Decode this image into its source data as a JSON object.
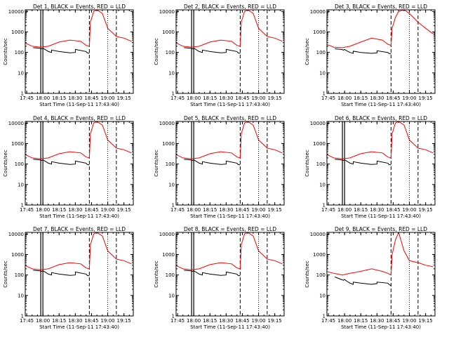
{
  "figure": {
    "x_axis_title": "Start Time (11-Sep-11 17:43:40)",
    "y_axis_title": "Counts/sec",
    "x_tick_labels": [
      "17:45",
      "18:00",
      "18:15",
      "18:30",
      "18:45",
      "19:00",
      "19:15"
    ],
    "y_tick_labels": [
      "1",
      "10",
      "100",
      "1000",
      "10000"
    ],
    "colors": {
      "events": "#000000",
      "lld": "#ff0000",
      "background": "#ffffff"
    }
  },
  "chart_data": [
    {
      "type": "line",
      "title": "Det 1, BLACK = Events, RED = LLD",
      "xlim": [
        "17:43:40",
        "19:23:40"
      ],
      "ylim": [
        1,
        12000
      ],
      "y_scale": "log",
      "markers": {
        "solid": [
          "17:58",
          "18:00"
        ],
        "dashed": [
          "18:43",
          "19:08"
        ],
        "dotted": [
          "19:00"
        ]
      },
      "series": [
        {
          "color": "black",
          "x": [
            "17:51",
            "17:57",
            "17:59",
            "18:00",
            "18:02",
            "18:05",
            "18:08",
            "18:08",
            "18:15",
            "18:25",
            "18:30",
            "18:30",
            "18:40",
            "18:41",
            "18:43"
          ],
          "y": [
            170,
            160,
            150,
            160,
            140,
            110,
            100,
            130,
            110,
            95,
            100,
            140,
            110,
            95,
            90
          ]
        },
        {
          "color": "red",
          "x": [
            "17:43",
            "17:50",
            "17:58",
            "18:05",
            "18:15",
            "18:25",
            "18:35",
            "18:40",
            "18:43",
            "18:44",
            "18:47",
            "18:50",
            "18:55",
            "19:00",
            "19:08",
            "19:15",
            "19:22"
          ],
          "y": [
            300,
            200,
            180,
            200,
            320,
            400,
            350,
            220,
            200,
            3000,
            10000,
            12000,
            8000,
            1500,
            600,
            500,
            350
          ]
        }
      ]
    },
    {
      "type": "line",
      "title": "Det 2, BLACK = Events, RED = LLD",
      "xlim": [
        "17:43:40",
        "19:23:40"
      ],
      "ylim": [
        1,
        12000
      ],
      "y_scale": "log",
      "markers": {
        "solid": [
          "17:58",
          "18:00"
        ],
        "dashed": [
          "18:43",
          "19:08"
        ],
        "dotted": [
          "19:00"
        ]
      },
      "series": [
        {
          "color": "black",
          "x": [
            "17:51",
            "17:57",
            "17:59",
            "18:00",
            "18:02",
            "18:05",
            "18:08",
            "18:08",
            "18:15",
            "18:25",
            "18:30",
            "18:30",
            "18:40",
            "18:41",
            "18:43"
          ],
          "y": [
            170,
            160,
            150,
            160,
            140,
            110,
            100,
            130,
            110,
            95,
            100,
            140,
            110,
            95,
            90
          ]
        },
        {
          "color": "red",
          "x": [
            "17:43",
            "17:50",
            "17:58",
            "18:05",
            "18:15",
            "18:25",
            "18:35",
            "18:40",
            "18:43",
            "18:44",
            "18:47",
            "18:50",
            "18:55",
            "19:00",
            "19:08",
            "19:15",
            "19:22"
          ],
          "y": [
            300,
            200,
            180,
            200,
            320,
            400,
            350,
            220,
            200,
            3000,
            10000,
            12000,
            8000,
            1500,
            600,
            500,
            350
          ]
        }
      ]
    },
    {
      "type": "line",
      "title": "Det 3, BLACK = Events, RED = LLD",
      "xlim": [
        "17:43:40",
        "19:23:40"
      ],
      "ylim": [
        1,
        12000
      ],
      "y_scale": "log",
      "markers": {
        "solid": [],
        "dashed": [
          "18:43",
          "19:08"
        ],
        "dotted": [
          "19:00"
        ]
      },
      "series": [
        {
          "color": "black",
          "x": [
            "17:51",
            "17:57",
            "17:59",
            "18:00",
            "18:02",
            "18:05",
            "18:08",
            "18:08",
            "18:15",
            "18:25",
            "18:30",
            "18:30",
            "18:40",
            "18:41",
            "18:43"
          ],
          "y": [
            150,
            140,
            130,
            140,
            120,
            100,
            90,
            115,
            100,
            90,
            95,
            120,
            100,
            90,
            85
          ]
        },
        {
          "color": "red",
          "x": [
            "17:43",
            "17:50",
            "17:58",
            "18:05",
            "18:15",
            "18:25",
            "18:35",
            "18:40",
            "18:43",
            "18:44",
            "18:47",
            "18:50",
            "18:55",
            "19:00",
            "19:08",
            "19:15",
            "19:22"
          ],
          "y": [
            250,
            180,
            170,
            200,
            320,
            500,
            400,
            250,
            220,
            1500,
            5000,
            10000,
            12000,
            8000,
            3000,
            1500,
            800
          ]
        }
      ]
    },
    {
      "type": "line",
      "title": "Det 4, BLACK = Events, RED = LLD",
      "xlim": [
        "17:43:40",
        "19:23:40"
      ],
      "ylim": [
        1,
        12000
      ],
      "y_scale": "log",
      "markers": {
        "solid": [
          "17:58",
          "18:00"
        ],
        "dashed": [
          "18:43",
          "19:08"
        ],
        "dotted": [
          "19:00"
        ]
      },
      "series": [
        {
          "color": "black",
          "x": [
            "17:51",
            "17:57",
            "17:59",
            "18:00",
            "18:02",
            "18:05",
            "18:08",
            "18:08",
            "18:15",
            "18:25",
            "18:30",
            "18:30",
            "18:40",
            "18:41",
            "18:43"
          ],
          "y": [
            170,
            160,
            150,
            160,
            140,
            110,
            100,
            130,
            110,
            95,
            100,
            140,
            110,
            95,
            90
          ]
        },
        {
          "color": "red",
          "x": [
            "17:43",
            "17:50",
            "17:58",
            "18:05",
            "18:15",
            "18:25",
            "18:35",
            "18:40",
            "18:43",
            "18:44",
            "18:47",
            "18:50",
            "18:55",
            "19:00",
            "19:08",
            "19:15",
            "19:22"
          ],
          "y": [
            300,
            200,
            180,
            200,
            320,
            400,
            350,
            220,
            200,
            3000,
            10000,
            12000,
            8000,
            1500,
            600,
            500,
            350
          ]
        }
      ]
    },
    {
      "type": "line",
      "title": "Det 5, BLACK = Events, RED = LLD",
      "xlim": [
        "17:43:40",
        "19:23:40"
      ],
      "ylim": [
        1,
        12000
      ],
      "y_scale": "log",
      "markers": {
        "solid": [
          "17:58",
          "18:00"
        ],
        "dashed": [
          "18:43",
          "19:08"
        ],
        "dotted": [
          "19:00"
        ]
      },
      "series": [
        {
          "color": "black",
          "x": [
            "17:51",
            "17:57",
            "17:59",
            "18:00",
            "18:02",
            "18:05",
            "18:08",
            "18:08",
            "18:15",
            "18:25",
            "18:30",
            "18:30",
            "18:40",
            "18:41",
            "18:43"
          ],
          "y": [
            170,
            160,
            150,
            160,
            140,
            110,
            100,
            130,
            110,
            95,
            100,
            140,
            110,
            95,
            90
          ]
        },
        {
          "color": "red",
          "x": [
            "17:43",
            "17:50",
            "17:58",
            "18:05",
            "18:15",
            "18:25",
            "18:35",
            "18:40",
            "18:43",
            "18:44",
            "18:47",
            "18:50",
            "18:55",
            "19:00",
            "19:08",
            "19:15",
            "19:22"
          ],
          "y": [
            300,
            200,
            180,
            200,
            320,
            400,
            350,
            220,
            200,
            3000,
            10000,
            12000,
            8000,
            1500,
            600,
            500,
            350
          ]
        }
      ]
    },
    {
      "type": "line",
      "title": "Det 6, BLACK = Events, RED = LLD",
      "xlim": [
        "17:43:40",
        "19:23:40"
      ],
      "ylim": [
        1,
        12000
      ],
      "y_scale": "log",
      "markers": {
        "solid": [
          "17:58",
          "18:00"
        ],
        "dashed": [
          "18:43",
          "19:08"
        ],
        "dotted": [
          "19:00"
        ]
      },
      "series": [
        {
          "color": "black",
          "x": [
            "17:51",
            "17:57",
            "17:59",
            "18:00",
            "18:02",
            "18:05",
            "18:08",
            "18:08",
            "18:15",
            "18:25",
            "18:30",
            "18:30",
            "18:40",
            "18:41",
            "18:43"
          ],
          "y": [
            170,
            160,
            150,
            160,
            140,
            110,
            100,
            130,
            110,
            95,
            100,
            140,
            110,
            95,
            90
          ]
        },
        {
          "color": "red",
          "x": [
            "17:43",
            "17:50",
            "17:58",
            "18:05",
            "18:15",
            "18:25",
            "18:35",
            "18:40",
            "18:43",
            "18:44",
            "18:47",
            "18:50",
            "18:55",
            "19:00",
            "19:08",
            "19:15",
            "19:22"
          ],
          "y": [
            300,
            200,
            180,
            200,
            320,
            400,
            350,
            220,
            200,
            3000,
            10000,
            12000,
            8000,
            1500,
            600,
            500,
            350
          ]
        }
      ]
    },
    {
      "type": "line",
      "title": "Det 7, BLACK = Events, RED = LLD",
      "xlim": [
        "17:43:40",
        "19:23:40"
      ],
      "ylim": [
        1,
        12000
      ],
      "y_scale": "log",
      "markers": {
        "solid": [
          "17:58",
          "18:00"
        ],
        "dashed": [
          "18:43",
          "19:08"
        ],
        "dotted": [
          "19:00"
        ]
      },
      "series": [
        {
          "color": "black",
          "x": [
            "17:51",
            "17:57",
            "17:59",
            "18:00",
            "18:02",
            "18:05",
            "18:08",
            "18:08",
            "18:15",
            "18:25",
            "18:30",
            "18:30",
            "18:40",
            "18:41",
            "18:43"
          ],
          "y": [
            170,
            160,
            150,
            160,
            140,
            110,
            100,
            130,
            110,
            95,
            100,
            140,
            110,
            95,
            90
          ]
        },
        {
          "color": "red",
          "x": [
            "17:43",
            "17:50",
            "17:58",
            "18:05",
            "18:15",
            "18:25",
            "18:35",
            "18:40",
            "18:43",
            "18:44",
            "18:47",
            "18:50",
            "18:55",
            "19:00",
            "19:08",
            "19:15",
            "19:22"
          ],
          "y": [
            300,
            200,
            180,
            200,
            320,
            400,
            350,
            220,
            200,
            3000,
            10000,
            12000,
            8000,
            1500,
            600,
            500,
            350
          ]
        }
      ]
    },
    {
      "type": "line",
      "title": "Det 8, BLACK = Events, RED = LLD",
      "xlim": [
        "17:43:40",
        "19:23:40"
      ],
      "ylim": [
        1,
        12000
      ],
      "y_scale": "log",
      "markers": {
        "solid": [
          "17:58",
          "18:00"
        ],
        "dashed": [
          "18:43",
          "19:08"
        ],
        "dotted": [
          "19:00"
        ]
      },
      "series": [
        {
          "color": "black",
          "x": [
            "17:51",
            "17:57",
            "17:59",
            "18:00",
            "18:02",
            "18:05",
            "18:08",
            "18:08",
            "18:15",
            "18:25",
            "18:30",
            "18:30",
            "18:40",
            "18:41",
            "18:43"
          ],
          "y": [
            170,
            160,
            150,
            160,
            140,
            110,
            100,
            130,
            110,
            95,
            100,
            140,
            110,
            95,
            90
          ]
        },
        {
          "color": "red",
          "x": [
            "17:43",
            "17:50",
            "17:58",
            "18:05",
            "18:15",
            "18:25",
            "18:35",
            "18:40",
            "18:43",
            "18:44",
            "18:47",
            "18:50",
            "18:55",
            "19:00",
            "19:08",
            "19:15",
            "19:22"
          ],
          "y": [
            300,
            200,
            180,
            200,
            320,
            400,
            350,
            220,
            200,
            3000,
            10000,
            12000,
            8000,
            1500,
            600,
            500,
            350
          ]
        }
      ]
    },
    {
      "type": "line",
      "title": "Det 9, BLACK = Events, RED = LLD",
      "xlim": [
        "17:43:40",
        "19:23:40"
      ],
      "ylim": [
        1,
        12000
      ],
      "y_scale": "log",
      "markers": {
        "solid": [],
        "dashed": [
          "18:43",
          "19:08"
        ],
        "dotted": [
          "19:00"
        ]
      },
      "series": [
        {
          "color": "black",
          "x": [
            "17:51",
            "17:57",
            "17:59",
            "18:00",
            "18:02",
            "18:05",
            "18:08",
            "18:08",
            "18:15",
            "18:25",
            "18:30",
            "18:30",
            "18:40",
            "18:41",
            "18:43"
          ],
          "y": [
            80,
            60,
            55,
            60,
            50,
            40,
            35,
            45,
            40,
            35,
            38,
            45,
            40,
            35,
            30
          ]
        },
        {
          "color": "red",
          "x": [
            "17:43",
            "17:50",
            "17:58",
            "18:05",
            "18:15",
            "18:25",
            "18:35",
            "18:40",
            "18:43",
            "18:44",
            "18:47",
            "18:50",
            "18:55",
            "19:00",
            "19:08",
            "19:15",
            "19:22"
          ],
          "y": [
            150,
            120,
            100,
            120,
            150,
            200,
            150,
            120,
            100,
            1000,
            5000,
            12000,
            1500,
            500,
            400,
            300,
            250
          ]
        }
      ]
    }
  ]
}
